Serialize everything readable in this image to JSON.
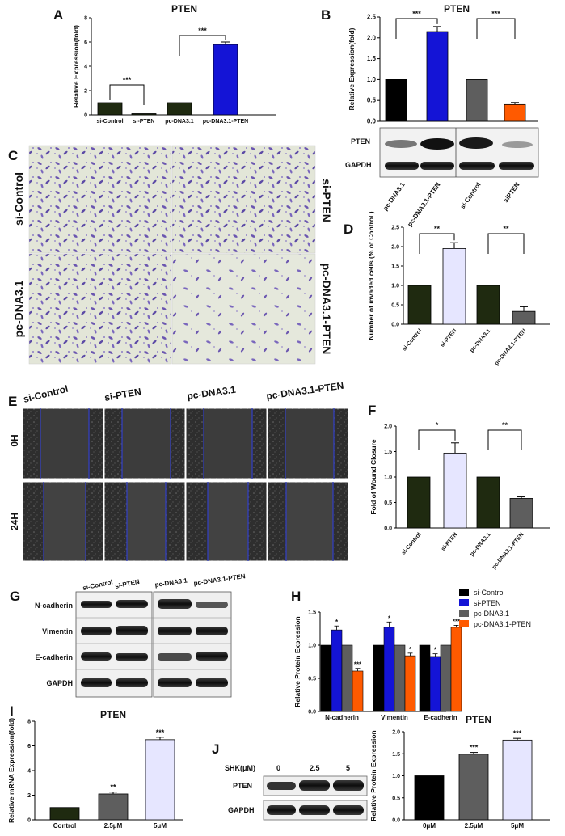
{
  "colors": {
    "dark": "#1f2a10",
    "blue": "#1414d6",
    "grey": "#5e5e5e",
    "orange": "#ff5a00",
    "lav": "#e6e6ff",
    "black": "#000000"
  },
  "panels": {
    "A": "A",
    "B": "B",
    "C": "C",
    "D": "D",
    "E": "E",
    "F": "F",
    "G": "G",
    "H": "H",
    "I": "I",
    "J": "J"
  },
  "chart_data": [
    {
      "id": "A",
      "type": "bar",
      "title": "PTEN",
      "ylabel": "Relative Expression(fold)",
      "ylim": [
        0,
        8
      ],
      "yticks": [
        0,
        2,
        4,
        6,
        8
      ],
      "categories": [
        "si-Control",
        "si-PTEN",
        "pc-DNA3.1",
        "pc-DNA3.1-PTEN"
      ],
      "values": [
        1,
        0.1,
        1,
        5.8
      ],
      "errors": [
        0,
        0,
        0,
        0.2
      ],
      "colors": [
        "#1f2a10",
        "#1f2a10",
        "#1f2a10",
        "#1414d6"
      ],
      "sig": [
        {
          "i": 0,
          "j": 1,
          "label": "***"
        },
        {
          "i": 2,
          "j": 3,
          "label": "***"
        }
      ]
    },
    {
      "id": "B",
      "type": "bar",
      "title": "PTEN",
      "ylabel": "Relative Expression(fold)",
      "ylim": [
        0,
        2.5
      ],
      "yticks": [
        0.0,
        0.5,
        1.0,
        1.5,
        2.0,
        2.5
      ],
      "categories": [
        "pc-DNA3.1",
        "pc-DNA3.1-PTEN",
        "si-Control",
        "siPTEN"
      ],
      "values": [
        1.0,
        2.15,
        1.0,
        0.4
      ],
      "errors": [
        0,
        0.12,
        0,
        0.05
      ],
      "colors": [
        "#000000",
        "#1414d6",
        "#5e5e5e",
        "#ff5a00"
      ],
      "sig": [
        {
          "i": 0,
          "j": 1,
          "label": "***"
        },
        {
          "i": 2,
          "j": 3,
          "label": "***"
        }
      ]
    },
    {
      "id": "D",
      "type": "bar",
      "ylabel": "Number of invaded cells (% of Control )",
      "ylim": [
        0,
        2.5
      ],
      "yticks": [
        0.0,
        0.5,
        1.0,
        1.5,
        2.0,
        2.5
      ],
      "categories": [
        "si-Control",
        "si-PTEN",
        "pc-DNA3.1",
        "pc-DNA3.1-PTEN"
      ],
      "values": [
        1.0,
        1.95,
        1.0,
        0.33
      ],
      "errors": [
        0,
        0.15,
        0,
        0.12
      ],
      "colors": [
        "#1f2a10",
        "#e6e6ff",
        "#1f2a10",
        "#5e5e5e"
      ],
      "sig": [
        {
          "i": 0,
          "j": 1,
          "label": "**"
        },
        {
          "i": 2,
          "j": 3,
          "label": "**"
        }
      ]
    },
    {
      "id": "F",
      "type": "bar",
      "ylabel": "Fold of Wound Closure",
      "ylim": [
        0,
        2.0
      ],
      "yticks": [
        0.0,
        0.5,
        1.0,
        1.5,
        2.0
      ],
      "categories": [
        "si-Control",
        "si-PTEN",
        "pc-DNA3.1",
        "pc-DNA3.1-PTEN"
      ],
      "values": [
        1.0,
        1.47,
        1.0,
        0.58
      ],
      "errors": [
        0,
        0.2,
        0,
        0.03
      ],
      "colors": [
        "#1f2a10",
        "#e6e6ff",
        "#1f2a10",
        "#5e5e5e"
      ],
      "sig": [
        {
          "i": 0,
          "j": 1,
          "label": "*"
        },
        {
          "i": 2,
          "j": 3,
          "label": "**"
        }
      ]
    },
    {
      "id": "H",
      "type": "bar",
      "ylabel": "Relative Protein Expression",
      "ylim": [
        0.0,
        1.5
      ],
      "yticks": [
        0.0,
        0.5,
        1.0,
        1.5
      ],
      "categories": [
        "N-cadherin",
        "Vimentin",
        "E-cadherin"
      ],
      "series": [
        {
          "name": "si-Control",
          "color": "#000000",
          "values": [
            1.0,
            1.0,
            1.0
          ],
          "errors": [
            0,
            0,
            0
          ],
          "sig": [
            "",
            "",
            ""
          ]
        },
        {
          "name": "si-PTEN",
          "color": "#1414d6",
          "values": [
            1.23,
            1.27,
            0.83
          ],
          "errors": [
            0.06,
            0.08,
            0.04
          ],
          "sig": [
            "*",
            "*",
            "*"
          ]
        },
        {
          "name": "pc-DNA3.1",
          "color": "#5e5e5e",
          "values": [
            1.0,
            1.0,
            1.0
          ],
          "errors": [
            0,
            0,
            0
          ],
          "sig": [
            "",
            "",
            ""
          ]
        },
        {
          "name": "pc-DNA3.1-PTEN",
          "color": "#ff5a00",
          "values": [
            0.61,
            0.84,
            1.27
          ],
          "errors": [
            0.04,
            0.04,
            0.03
          ],
          "sig": [
            "***",
            "*",
            "***"
          ]
        }
      ]
    },
    {
      "id": "I",
      "type": "bar",
      "title": "PTEN",
      "ylabel": "Relative mRNA Expression(fold)",
      "ylim": [
        0,
        8
      ],
      "yticks": [
        0,
        2,
        4,
        6,
        8
      ],
      "categories": [
        "Control",
        "2.5μM",
        "5μM"
      ],
      "values": [
        1.0,
        2.1,
        6.5
      ],
      "errors": [
        0,
        0.15,
        0.2
      ],
      "colors": [
        "#1f2a10",
        "#5e5e5e",
        "#e6e6ff"
      ],
      "labels": [
        "",
        "**",
        "***"
      ]
    },
    {
      "id": "J",
      "type": "bar",
      "title": "PTEN",
      "ylabel": "Relative Protein Expression",
      "ylim": [
        0.0,
        2.0
      ],
      "yticks": [
        0.0,
        0.5,
        1.0,
        1.5,
        2.0
      ],
      "categories": [
        "0μM",
        "2.5μM",
        "5μM"
      ],
      "values": [
        1.0,
        1.49,
        1.81
      ],
      "errors": [
        0,
        0.04,
        0.04
      ],
      "colors": [
        "#000000",
        "#5e5e5e",
        "#e6e6ff"
      ],
      "labels": [
        "",
        "***",
        "***"
      ]
    }
  ],
  "blotB": {
    "rows": [
      "PTEN",
      "GAPDH"
    ],
    "lanes": [
      "pc-DNA3.1",
      "pc-DNA3.1-PTEN",
      "si-Control",
      "siPTEN"
    ]
  },
  "panelC": {
    "left": [
      "si-Control",
      "pc-DNA3.1"
    ],
    "right": [
      "si-PTEN",
      "pc-DNA3.1-PTEN"
    ]
  },
  "panelE": {
    "cols": [
      "si-Control",
      "si-PTEN",
      "pc-DNA3.1",
      "pc-DNA3.1-PTEN"
    ],
    "rows": [
      "0H",
      "24H"
    ]
  },
  "blotG": {
    "cols": [
      "si-Control",
      "si-PTEN",
      "pc-DNA3.1",
      "pc-DNA3.1-PTEN"
    ],
    "rows": [
      "N-cadherin",
      "Vimentin",
      "E-cadherin",
      "GAPDH"
    ]
  },
  "blotJ": {
    "treatment": "SHK(μM)",
    "doses": [
      "0",
      "2.5",
      "5"
    ],
    "rows": [
      "PTEN",
      "GAPDH"
    ]
  }
}
